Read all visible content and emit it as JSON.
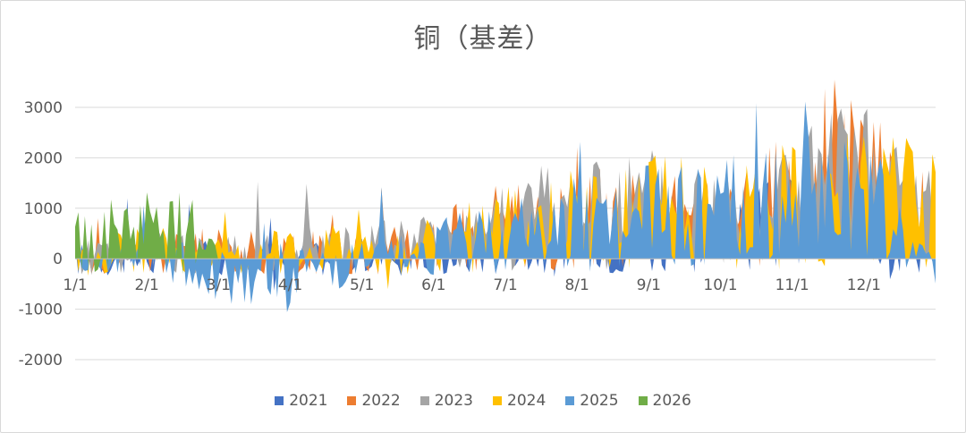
{
  "chart_data": {
    "type": "area",
    "title": "铜（基差）",
    "xlabel": "",
    "ylabel": "",
    "ylim": [
      -2000,
      3000
    ],
    "yticks": [
      "3000",
      "2000",
      "1000",
      "0",
      "-1000",
      "-2000"
    ],
    "x_tick_labels": [
      "1/1",
      "2/1",
      "3/1",
      "4/1",
      "5/1",
      "6/1",
      "7/1",
      "8/1",
      "9/1",
      "10/1",
      "11/1",
      "12/1"
    ],
    "grid": "horizontal",
    "legend_position": "bottom",
    "series": [
      {
        "name": "2021",
        "color": "#4472C4",
        "month_profile": [
          0,
          20,
          10,
          -10,
          30,
          50,
          150,
          220,
          320,
          350,
          800,
          700,
          400
        ]
      },
      {
        "name": "2022",
        "color": "#ED7D31",
        "month_profile": [
          0,
          80,
          150,
          100,
          120,
          250,
          700,
          800,
          700,
          650,
          1200,
          1400,
          800
        ]
      },
      {
        "name": "2023",
        "color": "#A5A5A5",
        "month_profile": [
          50,
          120,
          60,
          120,
          220,
          350,
          800,
          900,
          1000,
          900,
          1300,
          1500,
          900
        ]
      },
      {
        "name": "2024",
        "color": "#FFC000",
        "month_profile": [
          60,
          150,
          90,
          150,
          200,
          250,
          600,
          750,
          950,
          800,
          1100,
          1300,
          900
        ]
      },
      {
        "name": "2025",
        "color": "#5B9BD5",
        "month_profile": [
          100,
          60,
          -300,
          -400,
          -100,
          200,
          500,
          600,
          800,
          900,
          1100,
          1200,
          -300
        ]
      },
      {
        "name": "2026",
        "color": "#70AD47",
        "month_profile": [
          300,
          600,
          400
        ]
      }
    ]
  }
}
